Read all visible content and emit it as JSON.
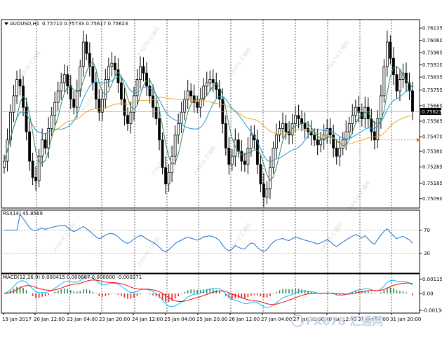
{
  "window": {
    "symbol_label": "AUDUSD,H1",
    "ohlc_text": "0.75710 0.75733 0.75617 0.75623",
    "current_price_label": "0.75623"
  },
  "watermark": {
    "text": "FX678 汇通网",
    "corner_text": "FX678 汇通网"
  },
  "colors": {
    "bull": "#000000",
    "bear": "#000000",
    "ma_fast": "#2e8b57",
    "ma_mid": "#1e9bd7",
    "ma_slow": "#f5a623",
    "rsi": "#1e6fd0",
    "macd_line": "#00bfff",
    "signal": "#ff0000",
    "hist_pos": "#2e8b57",
    "hist_neg": "#e02020",
    "grid": "#000000"
  },
  "chart_data": [
    {
      "type": "candlestick",
      "title": "AUDUSD,H1",
      "ylim": [
        0.7505,
        0.7617
      ],
      "y_ticks": [
        "0.76135",
        "0.76060",
        "0.75985",
        "0.75910",
        "0.75835",
        "0.75755",
        "0.75660",
        "0.75565",
        "0.75470",
        "0.75380",
        "0.75285",
        "0.75185",
        "0.75090"
      ],
      "x_ticks": [
        "19 Jan 2017",
        "20 Jan 12:00",
        "23 Jan 04:00",
        "23 Jan 20:00",
        "24 Jan 12:00",
        "25 Jan 04:00",
        "25 Jan 20:00",
        "26 Jan 12:00",
        "27 Jan 04:00",
        "27 Jan 20:00",
        "30 Jan 12:00",
        "31 Jan 04:00",
        "31 Jan 20:00"
      ],
      "close": [
        0.7532,
        0.7545,
        0.7562,
        0.7572,
        0.7582,
        0.7578,
        0.7565,
        0.755,
        0.7532,
        0.7522,
        0.752,
        0.7535,
        0.7545,
        0.754,
        0.7552,
        0.756,
        0.7568,
        0.7575,
        0.758,
        0.7585,
        0.7578,
        0.757,
        0.7565,
        0.7575,
        0.759,
        0.7605,
        0.7598,
        0.759,
        0.758,
        0.757,
        0.7562,
        0.757,
        0.7582,
        0.759,
        0.7592,
        0.7588,
        0.758,
        0.757,
        0.756,
        0.7555,
        0.7562,
        0.7572,
        0.7582,
        0.759,
        0.7586,
        0.7578,
        0.7572,
        0.7565,
        0.7558,
        0.7545,
        0.7528,
        0.7518,
        0.7525,
        0.7535,
        0.7548,
        0.7555,
        0.7562,
        0.757,
        0.7575,
        0.7572,
        0.7568,
        0.7565,
        0.757,
        0.7578,
        0.758,
        0.7582,
        0.758,
        0.7576,
        0.757,
        0.7555,
        0.754,
        0.753,
        0.7535,
        0.7545,
        0.7538,
        0.7532,
        0.753,
        0.754,
        0.7548,
        0.7545,
        0.753,
        0.7518,
        0.751,
        0.7515,
        0.7528,
        0.754,
        0.7548,
        0.7552,
        0.7555,
        0.755,
        0.7548,
        0.7555,
        0.756,
        0.7558,
        0.7555,
        0.7552,
        0.755,
        0.7548,
        0.7545,
        0.7542,
        0.7545,
        0.7548,
        0.7552,
        0.7548,
        0.754,
        0.7535,
        0.754,
        0.7545,
        0.755,
        0.7555,
        0.756,
        0.7565,
        0.7562,
        0.7558,
        0.7565,
        0.7558,
        0.755,
        0.7545,
        0.7558,
        0.7572,
        0.759,
        0.7605,
        0.7595,
        0.7585,
        0.7575,
        0.7582,
        0.7586,
        0.758,
        0.7575,
        0.75623
      ],
      "series": [
        {
          "name": "",
          "kind": "ma_fast"
        },
        {
          "name": "",
          "kind": "ma_mid"
        },
        {
          "name": "",
          "kind": "ma_slow"
        }
      ]
    },
    {
      "type": "line",
      "title": "RSI(14) 45.8569",
      "ylim": [
        0,
        100
      ],
      "y_ticks": [
        70,
        30
      ],
      "levels": [
        70,
        30
      ],
      "values": []
    },
    {
      "type": "bar",
      "title": "MACD(12,26,9) 0.000415 0.000687 0.000000 -0.000271",
      "ylim": [
        -0.00134,
        0.00134
      ],
      "y_ticks": [
        "0.00115",
        "0.00",
        "-0.00134"
      ]
    }
  ]
}
